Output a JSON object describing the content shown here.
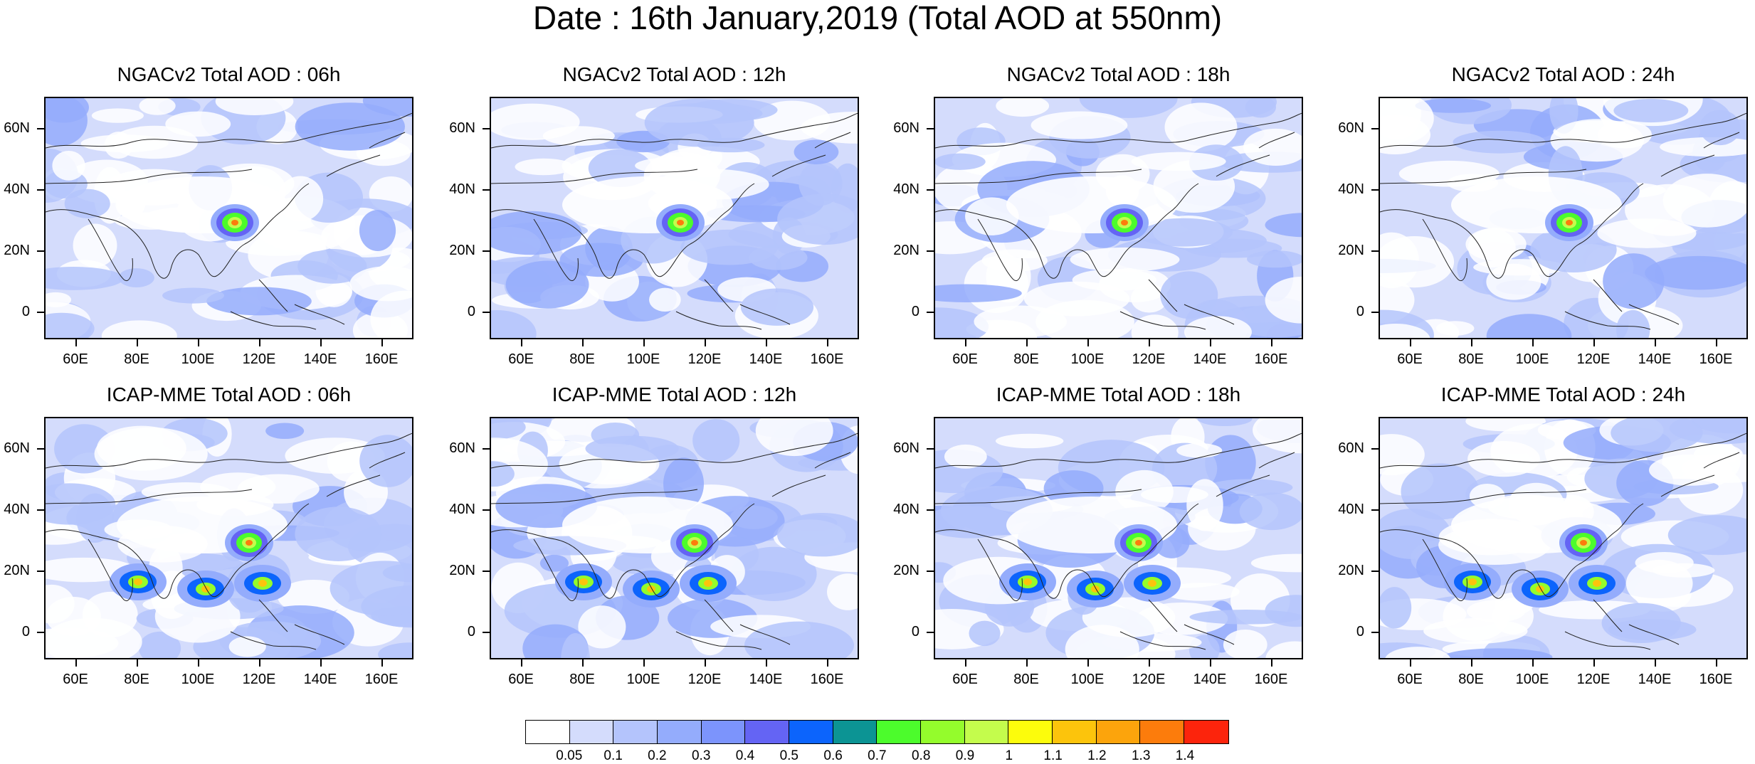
{
  "title": "Date : 16th January,2019 (Total AOD at 550nm)",
  "panels": [
    {
      "title": "NGACv2 Total AOD : 06h"
    },
    {
      "title": "NGACv2 Total AOD : 12h"
    },
    {
      "title": "NGACv2 Total AOD : 18h"
    },
    {
      "title": "NGACv2 Total AOD : 24h"
    },
    {
      "title": "ICAP-MME Total AOD : 06h"
    },
    {
      "title": "ICAP-MME Total AOD : 12h"
    },
    {
      "title": "ICAP-MME Total AOD : 18h"
    },
    {
      "title": "ICAP-MME Total AOD : 24h"
    }
  ],
  "axes": {
    "lat_ticks": [
      "60N",
      "40N",
      "20N",
      "0"
    ],
    "lon_ticks": [
      "60E",
      "80E",
      "100E",
      "120E",
      "140E",
      "160E"
    ]
  },
  "colorbar": {
    "labels": [
      "0.05",
      "0.1",
      "0.2",
      "0.3",
      "0.4",
      "0.5",
      "0.6",
      "0.7",
      "0.8",
      "0.9",
      "1",
      "1.1",
      "1.2",
      "1.3",
      "1.4"
    ],
    "colors": [
      "#ffffff",
      "#d4dcfc",
      "#b4c4fc",
      "#94acfc",
      "#7c94fc",
      "#6464f4",
      "#0c64fc",
      "#0c9494",
      "#4cfc2c",
      "#94fc2c",
      "#c4fc4c",
      "#fcfc0c",
      "#fcc40c",
      "#fca40c",
      "#fc7c0c",
      "#fc240c"
    ]
  }
}
